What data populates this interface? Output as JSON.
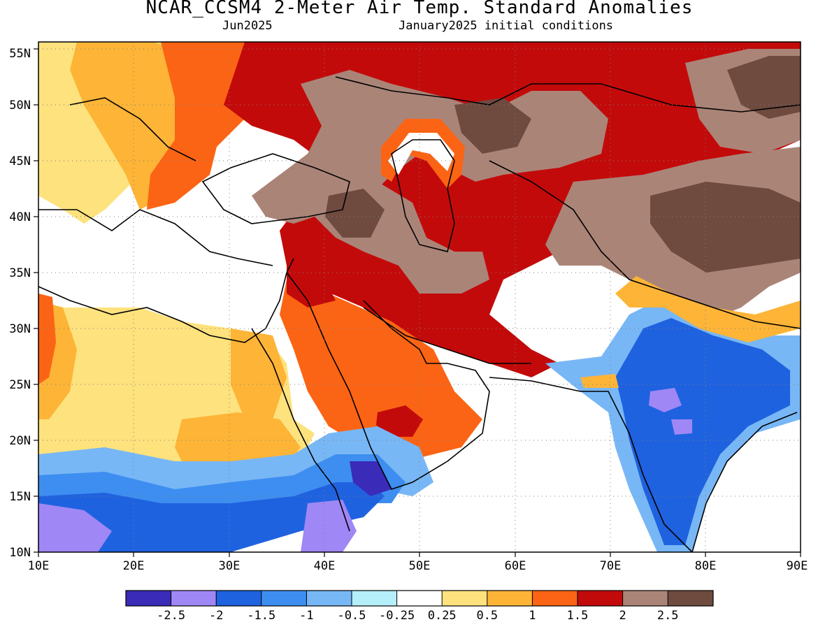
{
  "title": "NCAR_CCSM4 2-Meter Air Temp. Standard Anomalies",
  "valid_month": "Jun2025",
  "init": "January2025 initial conditions",
  "axes": {
    "lon_labels": [
      "10E",
      "20E",
      "30E",
      "40E",
      "50E",
      "60E",
      "70E",
      "80E",
      "90E"
    ],
    "lat_labels": [
      "10N",
      "15N",
      "20N",
      "25N",
      "30N",
      "35N",
      "40N",
      "45N",
      "50N",
      "55N"
    ]
  },
  "legend": {
    "colors": [
      "#3a2bb8",
      "#9f87f5",
      "#1f62e0",
      "#3d8ef0",
      "#78b7f5",
      "#b4effa",
      "#ffffff",
      "#fde27d",
      "#fdb437",
      "#fb6414",
      "#c30a0a",
      "#ab8478",
      "#6e4a3f"
    ],
    "labels": [
      "-2.5",
      "-2",
      "-1.5",
      "-1",
      "-0.5",
      "-0.25",
      "0.25",
      "0.5",
      "1",
      "1.5",
      "2",
      "2.5"
    ]
  },
  "regions": [
    {
      "name": "india-negative-anomaly-region",
      "color": "#1f62e0"
    },
    {
      "name": "east-africa-negative-anomaly-region",
      "color": "#3d8ef0"
    },
    {
      "name": "central-asia-high-anomaly-region",
      "color": "#ab8478"
    },
    {
      "name": "arabia-positive-anomaly-region",
      "color": "#fb6414"
    }
  ]
}
